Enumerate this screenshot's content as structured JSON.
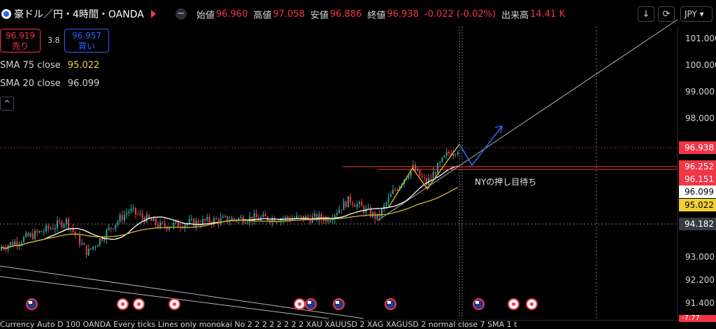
{
  "header": {
    "symbol": "豪ドル／円・4時間・OANDA",
    "open_label": "始値",
    "open": "96.960",
    "high_label": "高値",
    "high": "97.058",
    "low_label": "安値",
    "low": "96.886",
    "close_label": "終値",
    "close": "96.938",
    "change": "-0.022 (-0.02%)",
    "volume_label": "出来高",
    "volume": "14.41 K",
    "currency": "JPY"
  },
  "trade": {
    "sell_price": "96.919",
    "sell_label": "売り",
    "spread": "3.8",
    "buy_price": "96.957",
    "buy_label": "買い"
  },
  "indicators": [
    {
      "name": "SMA 75 close",
      "value": "95.022",
      "color": "#f0d036"
    },
    {
      "name": "SMA 20 close",
      "value": "96.099",
      "color": "#ffffff"
    }
  ],
  "annotation": "NYの押し目待ち",
  "price_axis": [
    "101.000",
    "100.000",
    "99.000",
    "98.000",
    "93.000",
    "92.200",
    "91.400"
  ],
  "price_tags": [
    {
      "label": "96.938",
      "bg": "#f23645",
      "fg": "#ffffff"
    },
    {
      "label": "96.252",
      "bg": "#f23645",
      "fg": "#ffffff"
    },
    {
      "label": "96.151",
      "bg": "#f23645",
      "fg": "#ffffff"
    },
    {
      "label": "96.099",
      "bg": "#ffffff",
      "fg": "#000000"
    },
    {
      "label": "95.022",
      "bg": "#f0d036",
      "fg": "#000000"
    },
    {
      "label": "94.182",
      "bg": "#363a45",
      "fg": "#ffffff"
    }
  ],
  "status_bar": "Currency      Auto D 100 OANDA Every ticks Lines only monokai No 2 2 2 2 2 2 2 2 XAU XAUUSD 2 XAG XAGUSD 2 normal close 7 SMA 1 t",
  "status_tag": "-7.77",
  "events": [
    "au",
    "jp",
    "jp",
    "jp",
    "jp",
    "au",
    "au",
    "au",
    "au",
    "jp",
    "jp"
  ],
  "colors": {
    "up": "#26a69a",
    "down": "#f23645",
    "bg": "#000000"
  },
  "icons": {
    "minus": "minus-icon",
    "download": "download-icon",
    "fullscreen": "fullscreen-icon",
    "collapse": "chevron-up-icon"
  }
}
